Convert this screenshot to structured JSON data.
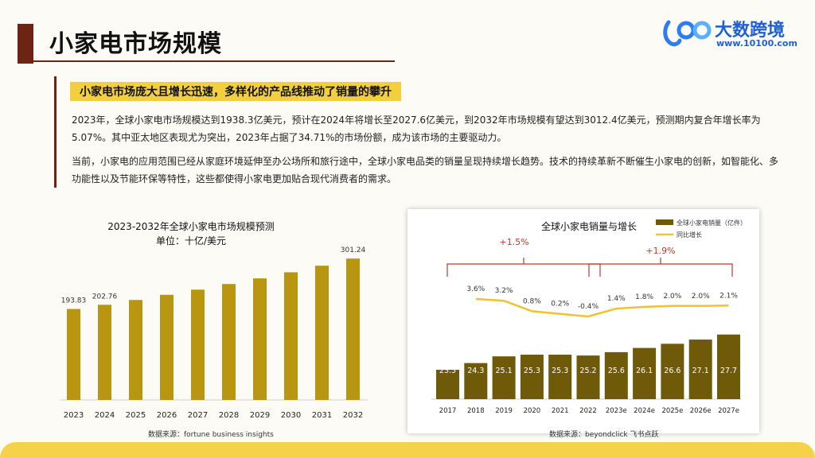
{
  "header": {
    "title": "小家电市场规模"
  },
  "logo": {
    "text": "大数跨境",
    "url": "www.10100.com"
  },
  "subtitle": "小家电市场庞大且增长迅速，多样化的产品线推动了销量的攀升",
  "paragraphs": [
    "2023年，全球小家电市场规模达到1938.3亿美元，预计在2024年将增长至2027.6亿美元，到2032年市场规模有望达到3012.4亿美元，预测期内复合年增长率为5.07%。其中亚太地区表现尤为突出，2023年占据了34.71%的市场份额，成为该市场的主要驱动力。",
    "当前，小家电的应用范围已经从家庭环境延伸至办公场所和旅行途中，全球小家电品类的销量呈现持续增长趋势。技术的持续革新不断催生小家电的创新，如智能化、多功能性以及节能环保等特性，这些都使得小家电更加贴合现代消费者的需求。"
  ],
  "left_chart": {
    "title": "2023-2032年全球小家电市场规模预测",
    "unit": "单位：十亿/美元",
    "source": "数据来源：fortune business insights"
  },
  "right_chart": {
    "title": "全球小家电销量与增长",
    "legend_bar": "全球小家电销量（亿件）",
    "legend_line": "同比增长",
    "bracket1": "+1.5%",
    "bracket2": "+1.9%",
    "source": "数据来源：beyondclick 飞书点跃"
  },
  "colors": {
    "bar": "#b8960f",
    "bar_dark": "#6e5a09",
    "line": "#f2c12e",
    "brown": "#6b2512",
    "bracket": "#c0392b"
  },
  "chart_data": [
    {
      "type": "bar",
      "title": "2023-2032年全球小家电市场规模预测",
      "categories": [
        "2023",
        "2024",
        "2025",
        "2026",
        "2027",
        "2028",
        "2029",
        "2030",
        "2031",
        "2032"
      ],
      "values": [
        193.83,
        202.76,
        213,
        224,
        235,
        247,
        259,
        272,
        286,
        301.24
      ],
      "labels": [
        "193.83",
        "202.76",
        "",
        "",
        "",
        "",
        "",
        "",
        "",
        "301.24"
      ],
      "ylim": [
        0,
        310
      ]
    },
    {
      "type": "bar",
      "title": "全球小家电销量与增长",
      "categories": [
        "2017",
        "2018",
        "2019",
        "2020",
        "2021",
        "2022",
        "2023e",
        "2024e",
        "2025e",
        "2026e",
        "2027e"
      ],
      "series": [
        {
          "name": "全球小家电销量（亿件）",
          "values": [
            23.5,
            24.3,
            25.1,
            25.3,
            25.3,
            25.2,
            25.6,
            26.1,
            26.6,
            27.1,
            27.7
          ]
        },
        {
          "name": "同比增长",
          "type": "line",
          "values": [
            null,
            3.6,
            3.2,
            0.8,
            0.2,
            -0.4,
            1.4,
            1.8,
            2.0,
            2.0,
            2.1
          ],
          "labels": [
            "",
            "3.6%",
            "3.2%",
            "0.8%",
            "0.2%",
            "-0.4%",
            "1.4%",
            "1.8%",
            "2.0%",
            "2.0%",
            "2.1%"
          ]
        }
      ]
    }
  ]
}
